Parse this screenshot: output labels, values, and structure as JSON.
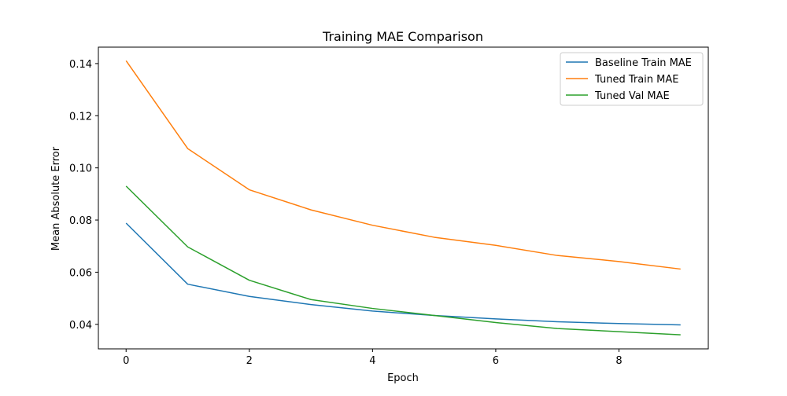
{
  "chart_data": {
    "type": "line",
    "title": "Training MAE Comparison",
    "xlabel": "Epoch",
    "ylabel": "Mean Absolute Error",
    "xlim": [
      -0.45,
      9.45
    ],
    "ylim": [
      0.0306,
      0.1463
    ],
    "xticks": [
      0,
      2,
      4,
      6,
      8
    ],
    "yticks": [
      0.04,
      0.06,
      0.08,
      0.1,
      0.12,
      0.14
    ],
    "xtick_labels": [
      "0",
      "2",
      "4",
      "6",
      "8"
    ],
    "ytick_labels": [
      "0.04",
      "0.06",
      "0.08",
      "0.10",
      "0.12",
      "0.14"
    ],
    "grid": false,
    "legend_position": "top-right",
    "x": [
      0,
      1,
      2,
      3,
      4,
      5,
      6,
      7,
      8,
      9
    ],
    "series": [
      {
        "name": "Baseline Train MAE",
        "color": "#1f77b4",
        "values": [
          0.0788,
          0.0554,
          0.0507,
          0.0476,
          0.0451,
          0.0434,
          0.0421,
          0.041,
          0.0403,
          0.0398
        ]
      },
      {
        "name": "Tuned Train MAE",
        "color": "#ff7f0e",
        "values": [
          0.1411,
          0.1074,
          0.0916,
          0.0839,
          0.078,
          0.0734,
          0.0703,
          0.0664,
          0.0641,
          0.0612
        ]
      },
      {
        "name": "Tuned Val MAE",
        "color": "#2ca02c",
        "values": [
          0.093,
          0.0697,
          0.0569,
          0.0495,
          0.0461,
          0.0434,
          0.0407,
          0.0384,
          0.0372,
          0.036
        ]
      }
    ]
  }
}
